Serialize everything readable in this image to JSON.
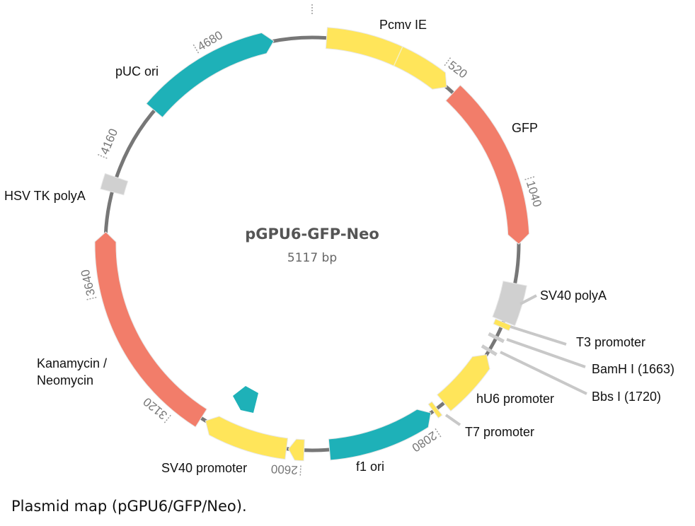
{
  "plasmid": {
    "name": "pGPU6-GFP-Neo",
    "size_label": "5117 bp",
    "length": 5117
  },
  "colors": {
    "promoter": "#ffe55a",
    "ori": "#1eb1b8",
    "gene": "#f27d6a",
    "polyA": "#d0d0d0",
    "site": "#cccccc",
    "backbone": "#777777"
  },
  "features": [
    {
      "name": "Pcmv IE",
      "start": 57,
      "end": 577,
      "dir": 1,
      "type": "promoter"
    },
    {
      "name": "GFP",
      "start": 611,
      "end": 1280,
      "dir": 1,
      "type": "gene"
    },
    {
      "name": "SV40 polyA",
      "start": 1436,
      "end": 1592,
      "dir": 0,
      "type": "polyA"
    },
    {
      "name": "T3 promoter",
      "start": 1596,
      "end": 1618,
      "dir": 0,
      "type": "promoter"
    },
    {
      "name": "hU6 promoter",
      "start": 1740,
      "end": 1995,
      "dir": -1,
      "type": "promoter"
    },
    {
      "name": "T7 promoter",
      "start": 2030,
      "end": 2048,
      "dir": 0,
      "type": "promoter"
    },
    {
      "name": "f1 ori",
      "start": 2060,
      "end": 2490,
      "dir": -1,
      "type": "ori"
    },
    {
      "name": "",
      "start": 2590,
      "end": 2652,
      "dir": 1,
      "type": "promoter"
    },
    {
      "name": "SV40 promoter",
      "start": 2660,
      "end": 3000,
      "dir": 1,
      "type": "promoter"
    },
    {
      "name": "Kanamycin / Neomycin",
      "start": 3020,
      "end": 3885,
      "dir": 1,
      "type": "gene"
    },
    {
      "name": "HSV TK polyA",
      "start": 4045,
      "end": 4105,
      "dir": 0,
      "type": "polyA"
    },
    {
      "name": "pUC ori",
      "start": 4410,
      "end": 4965,
      "dir": 1,
      "type": "ori"
    }
  ],
  "sites": [
    {
      "name": "BamH I (1663)",
      "position": 1663
    },
    {
      "name": "Bbs I (1720)",
      "position": 1720
    }
  ],
  "ticks": [
    "520",
    "1040",
    "2080",
    "2600",
    "3120",
    "3640",
    "4160",
    "4680"
  ],
  "tick_positions": [
    520,
    1040,
    2080,
    2600,
    3120,
    3640,
    4160,
    4680
  ],
  "caption": "Plasmid map (pGPU6/GFP/Neo)."
}
